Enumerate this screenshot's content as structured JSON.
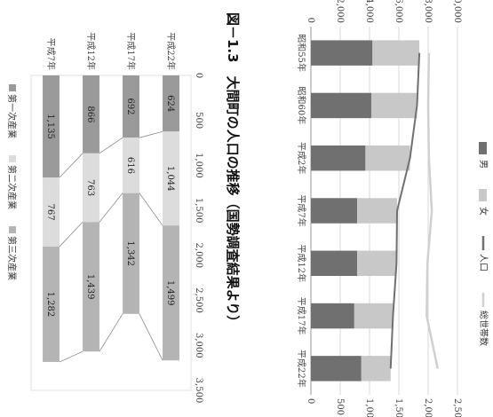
{
  "figure_title": "図－1.3　大間町の人口の推移（国勢調査結果より）",
  "chart_data": [
    {
      "type": "bar",
      "categories": [
        "昭和55年",
        "昭和60年",
        "平成2年",
        "平成7年",
        "平成12年",
        "平成17年",
        "平成22年"
      ],
      "series": [
        {
          "name": "男",
          "values": [
            1050,
            1030,
            930,
            790,
            790,
            740,
            860
          ],
          "axis": "right",
          "color": "#707070"
        },
        {
          "name": "女",
          "values": [
            800,
            780,
            760,
            680,
            670,
            660,
            500
          ],
          "axis": "right",
          "color": "#c8c8c8"
        },
        {
          "name": "人口",
          "values": [
            1850,
            1810,
            1690,
            1470,
            1460,
            1400,
            1360
          ],
          "axis": "right",
          "line": true,
          "color": "#707070"
        },
        {
          "name": "総世帯数",
          "values": [
            8050,
            8000,
            8050,
            8250,
            7950,
            7900,
            8650
          ],
          "axis": "left",
          "line": true,
          "color": "#d0d0d0"
        }
      ],
      "left_axis": {
        "min": 0,
        "max": 10000,
        "ticks": [
          "0",
          "2,000",
          "4,000",
          "6,000",
          "8,000",
          "10,000"
        ]
      },
      "right_axis": {
        "min": 0,
        "max": 2500,
        "ticks": [
          "0",
          "500",
          "1,000",
          "1,500",
          "2,000",
          "2,500"
        ]
      },
      "legend_position": "top"
    },
    {
      "type": "bar",
      "stacked": true,
      "categories": [
        "平成22年",
        "平成17年",
        "平成12年",
        "平成7年"
      ],
      "series": [
        {
          "name": "第一次産業",
          "values": [
            624,
            692,
            866,
            1135
          ],
          "color": "#9a9a9a"
        },
        {
          "name": "第二次産業",
          "values": [
            1044,
            616,
            763,
            767
          ],
          "color": "#dcdcdc"
        },
        {
          "name": "第三次産業",
          "values": [
            1499,
            1342,
            1439,
            1282
          ],
          "color": "#b4b4b4"
        }
      ],
      "axis": {
        "min": 0,
        "max": 3500,
        "ticks": [
          "0",
          "500",
          "1,000",
          "1,500",
          "2,000",
          "2,500",
          "3,000",
          "3,500"
        ]
      },
      "legend_position": "bottom"
    }
  ]
}
